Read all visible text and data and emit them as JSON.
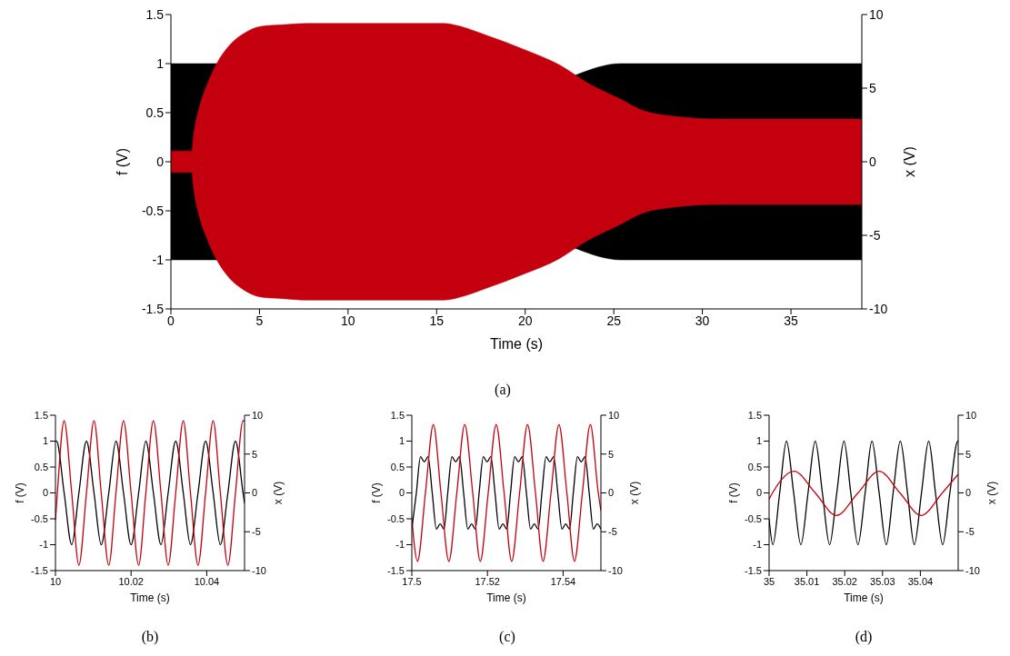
{
  "chart_data": [
    {
      "type": "area",
      "xlabel": "Time (s)",
      "ylabel": "f (V)",
      "y2label": "x (V)",
      "annotations": [
        "(a)"
      ],
      "xlim": [
        0,
        39
      ],
      "xticks": [
        0,
        5,
        10,
        15,
        20,
        25,
        30,
        35
      ],
      "ylim": [
        -1.5,
        1.5
      ],
      "yticks": [
        -1.5,
        -1,
        -0.5,
        0,
        0.5,
        1,
        1.5
      ],
      "y2lim": [
        -10,
        10
      ],
      "y2ticks": [
        -10,
        -5,
        0,
        5,
        10
      ],
      "series": [
        {
          "color": "#000000",
          "x": [
            0,
            2.7,
            12,
            22.8,
            25.4,
            39
          ],
          "values": [
            1,
            1,
            null,
            0.88,
            1,
            1
          ]
        },
        {
          "color": "#000000",
          "x": [
            0,
            2.7,
            12,
            22.8,
            25.4,
            39
          ],
          "values": [
            -1,
            -1,
            null,
            -0.88,
            -1,
            -1
          ]
        },
        {
          "color": "#c4000f",
          "axis": "y2",
          "x": [
            0,
            1.18,
            1.26,
            1.65,
            2.06,
            2.6,
            3.3,
            4.1,
            5.1,
            6.3,
            7.7,
            15.4,
            16.2,
            17.8,
            20,
            21.9,
            23.6,
            25.3,
            26.6,
            28.3,
            31,
            39
          ],
          "values": [
            0.73,
            0.73,
            1.6,
            3.9,
            5.3,
            6.7,
            7.9,
            8.7,
            9.2,
            9.3,
            9.4,
            9.4,
            9.24,
            8.6,
            7.6,
            6.6,
            5.3,
            4.3,
            3.5,
            3.1,
            2.9,
            2.9
          ]
        },
        {
          "color": "#c4000f",
          "axis": "y2",
          "x": [
            0,
            1.18,
            1.26,
            1.65,
            2.06,
            2.6,
            3.3,
            4.1,
            5.1,
            6.3,
            7.7,
            15.4,
            16.2,
            17.8,
            20,
            21.9,
            23.6,
            25.3,
            26.6,
            28.3,
            31,
            39
          ],
          "values": [
            -0.73,
            -0.73,
            -1.6,
            -3.9,
            -5.3,
            -6.7,
            -7.9,
            -8.7,
            -9.2,
            -9.3,
            -9.4,
            -9.4,
            -9.24,
            -8.6,
            -7.6,
            -6.6,
            -5.3,
            -4.3,
            -3.5,
            -3.1,
            -2.9,
            -2.9
          ]
        }
      ]
    },
    {
      "type": "line",
      "xlabel": "Time (s)",
      "ylabel": "f (V)",
      "y2label": "x (V)",
      "annotations": [
        "(b)"
      ],
      "xlim": [
        10,
        10.05
      ],
      "xticks": [
        10,
        10.02,
        10.04
      ],
      "ylim": [
        -1.5,
        1.5
      ],
      "yticks": [
        -1.5,
        -1,
        -0.5,
        0,
        0.5,
        1,
        1.5
      ],
      "y2lim": [
        -10,
        10
      ],
      "y2ticks": [
        -10,
        -5,
        0,
        5,
        10
      ],
      "series": [
        {
          "color": "#000000",
          "x": [
            10,
            10.0003,
            10.0023,
            10.0043,
            10.0062,
            10.0082,
            10.0102,
            10.0121,
            10.0141,
            10.016,
            10.018,
            10.02,
            10.022,
            10.0239,
            10.0259,
            10.0279,
            10.0298,
            10.0318,
            10.0338,
            10.0357,
            10.0377,
            10.0397,
            10.0417,
            10.0436,
            10.0456,
            10.0476,
            10.0496,
            10.05
          ],
          "values": [
            0.99,
            1,
            0,
            -1,
            0,
            1,
            0,
            -1,
            0,
            1,
            0,
            -1,
            0,
            1,
            0,
            -1,
            0,
            1,
            0,
            -1,
            0,
            1,
            0,
            -1,
            0,
            1,
            0,
            -0.2
          ]
        },
        {
          "color": "#c4000f",
          "axis": "y2",
          "x": [
            10,
            10.0005,
            10.0023,
            10.0043,
            10.0062,
            10.0082,
            10.0102,
            10.0121,
            10.0141,
            10.016,
            10.018,
            10.02,
            10.022,
            10.0239,
            10.0259,
            10.0279,
            10.0298,
            10.0318,
            10.0338,
            10.0357,
            10.0377,
            10.0397,
            10.0417,
            10.0436,
            10.0456,
            10.0476,
            10.0496,
            10.05
          ],
          "values": [
            -3.5,
            0,
            9.3,
            0,
            -9.3,
            0,
            9.3,
            0,
            -9.3,
            0,
            9.3,
            0,
            -9.3,
            0,
            9.3,
            0,
            -9.3,
            0,
            9.3,
            0,
            -9.3,
            0,
            9.3,
            0,
            -9.3,
            0,
            9.3,
            9.2
          ]
        }
      ]
    },
    {
      "type": "line",
      "xlabel": "Time (s)",
      "ylabel": "f (V)",
      "y2label": "x (V)",
      "annotations": [
        "(c)"
      ],
      "xlim": [
        17.5,
        17.55
      ],
      "xticks": [
        17.5,
        17.52,
        17.54
      ],
      "ylim": [
        -1.5,
        1.5
      ],
      "yticks": [
        -1.5,
        -1,
        -0.5,
        0,
        0.5,
        1,
        1.5
      ],
      "y2lim": [
        -10,
        10
      ],
      "y2ticks": [
        -10,
        -5,
        0,
        5,
        10
      ],
      "series": [
        {
          "color": "#000000",
          "x": [
            17.5,
            17.5012,
            17.5023,
            17.5033,
            17.5043,
            17.5054,
            17.5065,
            17.5075,
            17.5085,
            17.5095,
            17.5106,
            17.5116,
            17.5126,
            17.5137,
            17.5148,
            17.5158,
            17.5168,
            17.5178,
            17.5189,
            17.5199,
            17.5209,
            17.522,
            17.5231,
            17.5241,
            17.5251,
            17.5261,
            17.5272,
            17.5282,
            17.5292,
            17.5303,
            17.5314,
            17.5324,
            17.5334,
            17.5344,
            17.5355,
            17.5365,
            17.5375,
            17.5386,
            17.5397,
            17.5407,
            17.5417,
            17.5427,
            17.5438,
            17.5448,
            17.5458,
            17.5469,
            17.548,
            17.549,
            17.55
          ],
          "values": [
            -0.7,
            0,
            0.7,
            0.6,
            0.7,
            0,
            -0.7,
            -0.6,
            -0.7,
            0,
            0.7,
            0.6,
            0.7,
            0,
            -0.7,
            -0.6,
            -0.7,
            0,
            0.7,
            0.6,
            0.7,
            0,
            -0.7,
            -0.6,
            -0.7,
            0,
            0.7,
            0.6,
            0.7,
            0,
            -0.7,
            -0.6,
            -0.7,
            0,
            0.7,
            0.6,
            0.7,
            0,
            -0.7,
            -0.6,
            -0.7,
            0,
            0.7,
            0.6,
            0.7,
            0,
            -0.7,
            -0.6,
            -0.7
          ]
        },
        {
          "color": "#c4000f",
          "axis": "y2",
          "x": [
            17.5,
            17.5015,
            17.5036,
            17.5057,
            17.5077,
            17.5098,
            17.5119,
            17.514,
            17.5161,
            17.5181,
            17.5202,
            17.5223,
            17.5244,
            17.5264,
            17.5285,
            17.5306,
            17.5327,
            17.5347,
            17.5368,
            17.5389,
            17.541,
            17.543,
            17.5451,
            17.5472,
            17.5493,
            17.55
          ],
          "values": [
            -3.3,
            -8.8,
            0,
            8.8,
            0,
            -8.8,
            0,
            8.8,
            0,
            -8.8,
            0,
            8.8,
            0,
            -8.8,
            0,
            8.8,
            0,
            -8.8,
            0,
            8.8,
            0,
            -8.8,
            0,
            8.8,
            0,
            -2.3
          ]
        }
      ]
    },
    {
      "type": "line",
      "xlabel": "Time (s)",
      "ylabel": "f (V)",
      "y2label": "x (V)",
      "annotations": [
        "(d)"
      ],
      "xlim": [
        35,
        35.05
      ],
      "xticks": [
        35,
        35.01,
        35.02,
        35.03,
        35.04
      ],
      "ylim": [
        -1.5,
        1.5
      ],
      "yticks": [
        -1.5,
        -1,
        -0.5,
        0,
        0.5,
        1,
        1.5
      ],
      "y2lim": [
        -10,
        10
      ],
      "y2ticks": [
        -10,
        -5,
        0,
        5,
        10
      ],
      "series": [
        {
          "color": "#000000",
          "x": [
            35,
            35.001,
            35.0028,
            35.0046,
            35.0065,
            35.0084,
            35.0103,
            35.0122,
            35.0141,
            35.016,
            35.0179,
            35.0198,
            35.0216,
            35.0235,
            35.0254,
            35.0272,
            35.0291,
            35.031,
            35.0328,
            35.0347,
            35.0366,
            35.0384,
            35.0403,
            35.0422,
            35.044,
            35.0459,
            35.0478,
            35.0499,
            35.05
          ],
          "values": [
            -0.5,
            -1,
            0,
            1,
            0,
            -1,
            0,
            1,
            0,
            -1,
            0,
            1,
            0,
            -1,
            0,
            1,
            0,
            -1,
            0,
            1,
            0,
            -1,
            0,
            1,
            0,
            -1,
            0,
            1,
            1
          ]
        },
        {
          "color": "#c4000f",
          "axis": "y2",
          "x": [
            35,
            35.0009,
            35.0066,
            35.0122,
            35.0178,
            35.0235,
            35.0291,
            35.0346,
            35.0402,
            35.0458,
            35.05
          ],
          "values": [
            -0.8,
            0,
            2.8,
            0,
            -2.9,
            0,
            2.8,
            0,
            -2.9,
            0,
            2.4
          ]
        }
      ]
    }
  ]
}
